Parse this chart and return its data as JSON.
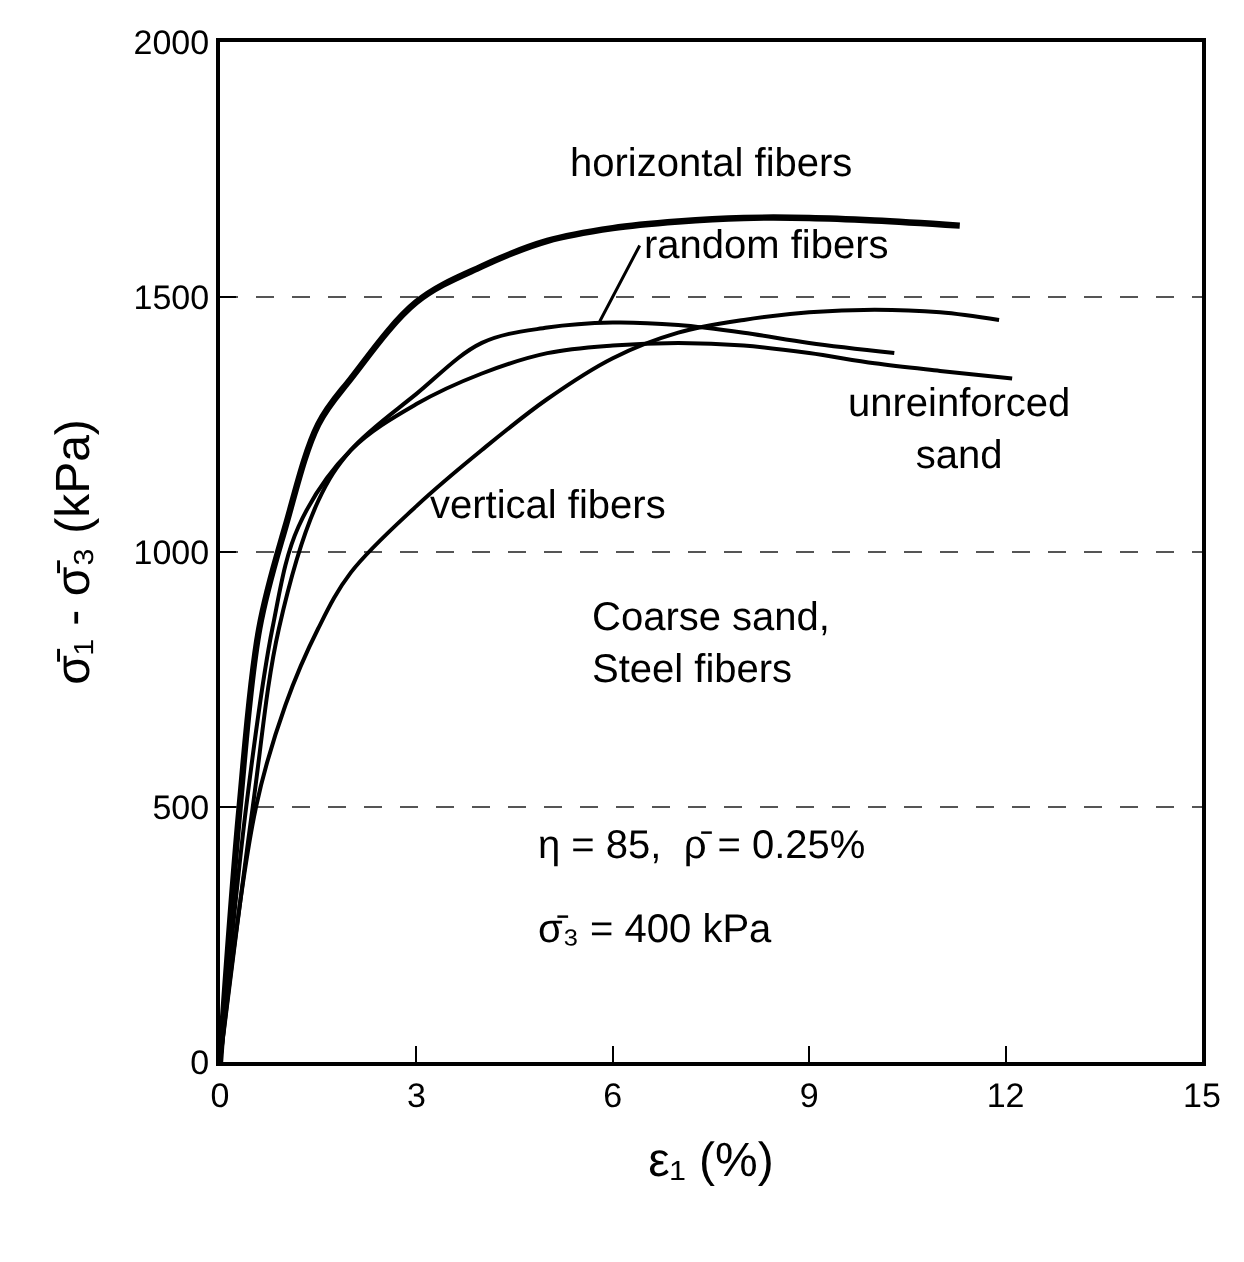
{
  "chart_data": {
    "type": "line",
    "xlabel": "ε₁ (%)",
    "ylabel": "σ̄₁ - σ̄₃ (kPa)",
    "xlim": [
      0,
      15
    ],
    "xticks": [
      0,
      3,
      6,
      9,
      12,
      15
    ],
    "ylim": [
      0,
      2000
    ],
    "yticks": [
      0,
      500,
      1000,
      1500,
      2000
    ],
    "grid": "y",
    "legend": false,
    "marker": "none",
    "line_style": "solid",
    "series": [
      {
        "name": "horizontal fibers",
        "color": "#000000",
        "x": [
          0,
          0.3,
          0.6,
          1,
          1.5,
          2,
          3,
          4,
          5,
          6,
          7,
          8,
          9,
          10,
          11.3
        ],
        "values": [
          0,
          500,
          850,
          1050,
          1250,
          1340,
          1490,
          1560,
          1610,
          1635,
          1648,
          1655,
          1655,
          1650,
          1640
        ]
      },
      {
        "name": "random fibers",
        "color": "#000000",
        "x": [
          0,
          0.5,
          0.9,
          1.5,
          2,
          3,
          4,
          5,
          6,
          7,
          8,
          9,
          10.3
        ],
        "values": [
          0,
          500,
          850,
          1100,
          1200,
          1310,
          1410,
          1440,
          1450,
          1445,
          1430,
          1410,
          1390
        ]
      },
      {
        "name": "unreinforced sand",
        "color": "#000000",
        "x": [
          0,
          0.4,
          0.8,
          1.2,
          2,
          3,
          4,
          5,
          6,
          7,
          8,
          9,
          10,
          11,
          12.1
        ],
        "values": [
          0,
          500,
          850,
          1050,
          1200,
          1290,
          1350,
          1390,
          1405,
          1410,
          1405,
          1390,
          1370,
          1355,
          1340
        ]
      },
      {
        "name": "vertical fibers",
        "color": "#000000",
        "x": [
          0,
          0.55,
          1,
          1.5,
          2,
          3,
          4,
          5,
          6,
          7,
          8,
          9,
          10,
          11,
          11.9
        ],
        "values": [
          0,
          500,
          700,
          850,
          960,
          1090,
          1200,
          1300,
          1380,
          1430,
          1455,
          1470,
          1475,
          1470,
          1455
        ]
      }
    ],
    "annotations": [
      "Coarse sand,\nSteel fibers",
      "η = 85,  ρ̄ = 0.25%",
      "σ̄₃ = 400 kPa"
    ]
  }
}
